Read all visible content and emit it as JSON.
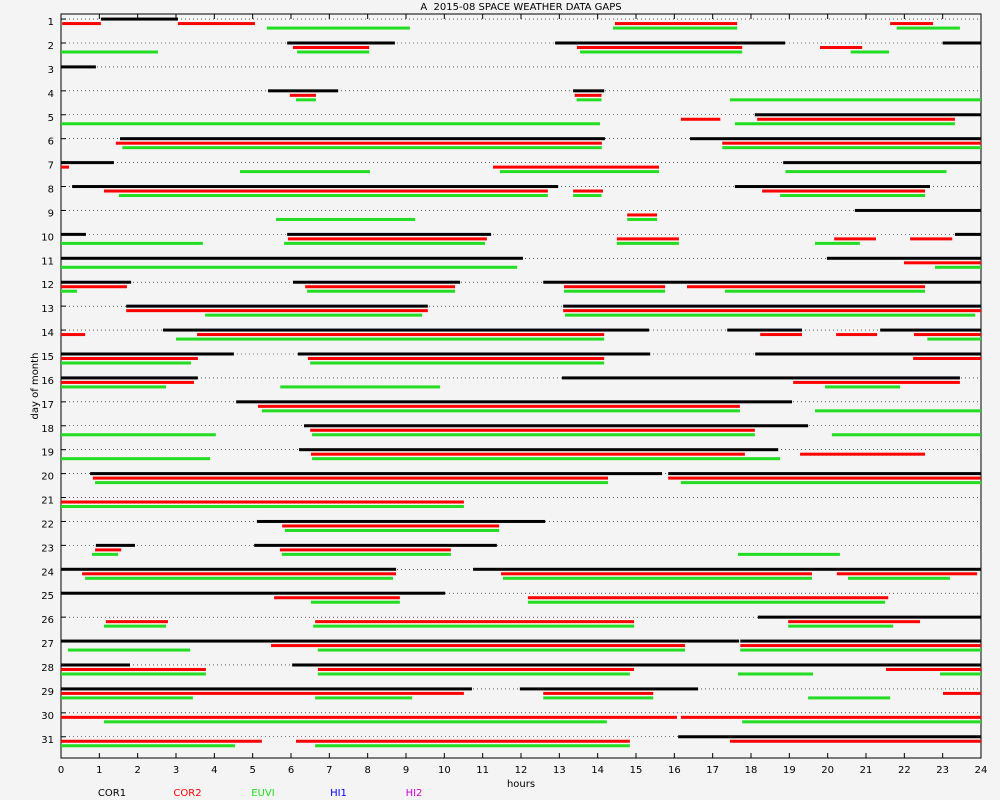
{
  "chart_data": {
    "type": "gaps",
    "title": "A  2015-08 SPACE WEATHER DATA GAPS",
    "x_label": "hours",
    "y_label": "day of month",
    "xlim": [
      0,
      24
    ],
    "xticks": [
      0,
      1,
      2,
      3,
      4,
      5,
      6,
      7,
      8,
      9,
      10,
      11,
      12,
      13,
      14,
      15,
      16,
      17,
      18,
      19,
      20,
      21,
      22,
      23,
      24
    ],
    "ylim": [
      0.6,
      31.7
    ],
    "yticks": [
      1,
      2,
      3,
      4,
      5,
      6,
      7,
      8,
      9,
      10,
      11,
      12,
      13,
      14,
      15,
      16,
      17,
      18,
      19,
      20,
      21,
      22,
      23,
      24,
      25,
      26,
      27,
      28,
      29,
      30,
      31
    ],
    "grid": true,
    "series": [
      {
        "name": "COR1",
        "color": "#000000",
        "gaps": [
          [
            1,
            1.04,
            3.05
          ],
          [
            2,
            5.9,
            8.71
          ],
          [
            2,
            12.89,
            18.89
          ],
          [
            2,
            23,
            24
          ],
          [
            3,
            0,
            0.91
          ],
          [
            4,
            5.4,
            7.23
          ],
          [
            4,
            13.36,
            14.17
          ],
          [
            5,
            18.1,
            24
          ],
          [
            6,
            1.54,
            14.19
          ],
          [
            6,
            16.41,
            24
          ],
          [
            7,
            0,
            1.38
          ],
          [
            7,
            18.84,
            24
          ],
          [
            8,
            0.29,
            12.97
          ],
          [
            8,
            17.58,
            22.67
          ],
          [
            9,
            20.71,
            24
          ],
          [
            10,
            0,
            0.65
          ],
          [
            10,
            5.9,
            11.22
          ],
          [
            10,
            23.32,
            24
          ],
          [
            11,
            0,
            12.05
          ],
          [
            11,
            19.98,
            24
          ],
          [
            12,
            0,
            1.83
          ],
          [
            12,
            6.05,
            10.41
          ],
          [
            12,
            12.58,
            24
          ],
          [
            13,
            1.7,
            9.57
          ],
          [
            13,
            13.1,
            24
          ],
          [
            14,
            2.66,
            15.34
          ],
          [
            14,
            17.38,
            19.33
          ],
          [
            14,
            21.37,
            24
          ],
          [
            15,
            0,
            4.51
          ],
          [
            15,
            6.18,
            15.37
          ],
          [
            15,
            18.11,
            24
          ],
          [
            16,
            0,
            3.57
          ],
          [
            16,
            13.07,
            23.45
          ],
          [
            17,
            4.57,
            19.07
          ],
          [
            18,
            6.34,
            19.49
          ],
          [
            19,
            6.21,
            18.71
          ],
          [
            20,
            0.76,
            15.68
          ],
          [
            20,
            15.84,
            24
          ],
          [
            22,
            5.11,
            12.63
          ],
          [
            23,
            0.91,
            1.93
          ],
          [
            23,
            5.04,
            11.37
          ],
          [
            24,
            0,
            8.74
          ],
          [
            24,
            10.75,
            24
          ],
          [
            25,
            0,
            10.02
          ],
          [
            26,
            18.18,
            24
          ],
          [
            27,
            0,
            17.69
          ],
          [
            27,
            17.72,
            24
          ],
          [
            28,
            0,
            1.8
          ],
          [
            28,
            6.03,
            24
          ],
          [
            29,
            0,
            10.72
          ],
          [
            29,
            11.97,
            16.62
          ],
          [
            31,
            16.1,
            24
          ]
        ]
      },
      {
        "name": "COR2",
        "color": "#ff0000",
        "gaps": [
          [
            1,
            0.03,
            1.04
          ],
          [
            1,
            3.05,
            5.06
          ],
          [
            1,
            14.45,
            17.64
          ],
          [
            1,
            21.63,
            22.75
          ],
          [
            2,
            6.05,
            8.04
          ],
          [
            2,
            13.46,
            17.77
          ],
          [
            2,
            19.8,
            20.9
          ],
          [
            4,
            5.97,
            6.65
          ],
          [
            4,
            13.4,
            14.1
          ],
          [
            5,
            16.17,
            17.2
          ],
          [
            5,
            18.16,
            23.32
          ],
          [
            6,
            1.43,
            14.11
          ],
          [
            6,
            17.25,
            24
          ],
          [
            7,
            0,
            0.21
          ],
          [
            7,
            11.27,
            15.6
          ],
          [
            8,
            1.12,
            12.7
          ],
          [
            8,
            13.36,
            14.14
          ],
          [
            8,
            18.29,
            22.54
          ],
          [
            9,
            14.77,
            15.55
          ],
          [
            10,
            5.92,
            11.11
          ],
          [
            10,
            14.5,
            16.12
          ],
          [
            10,
            20.17,
            21.26
          ],
          [
            10,
            22.15,
            23.25
          ],
          [
            11,
            21.99,
            24
          ],
          [
            12,
            0,
            1.72
          ],
          [
            12,
            6.37,
            10.28
          ],
          [
            12,
            13.12,
            15.76
          ],
          [
            12,
            16.33,
            22.54
          ],
          [
            13,
            1.7,
            9.57
          ],
          [
            13,
            13.1,
            24
          ],
          [
            14,
            0,
            0.63
          ],
          [
            14,
            3.55,
            14.17
          ],
          [
            14,
            18.24,
            19.33
          ],
          [
            14,
            20.22,
            21.29
          ],
          [
            14,
            22.25,
            24
          ],
          [
            15,
            0,
            3.57
          ],
          [
            15,
            6.44,
            14.17
          ],
          [
            15,
            22.23,
            24
          ],
          [
            16,
            0,
            3.47
          ],
          [
            16,
            19.1,
            23.45
          ],
          [
            17,
            5.14,
            17.71
          ],
          [
            18,
            6.5,
            18.1
          ],
          [
            19,
            6.52,
            17.84
          ],
          [
            19,
            19.28,
            22.54
          ],
          [
            20,
            0.83,
            14.27
          ],
          [
            20,
            15.84,
            24
          ],
          [
            21,
            0,
            10.51
          ],
          [
            22,
            5.77,
            11.43
          ],
          [
            23,
            0.89,
            1.57
          ],
          [
            23,
            5.71,
            10.17
          ],
          [
            24,
            0.55,
            8.74
          ],
          [
            24,
            11.48,
            19.59
          ],
          [
            24,
            20.24,
            23.9
          ],
          [
            25,
            5.56,
            8.84
          ],
          [
            25,
            12.18,
            21.58
          ],
          [
            26,
            1.17,
            2.79
          ],
          [
            26,
            6.63,
            14.95
          ],
          [
            26,
            18.97,
            22.41
          ],
          [
            27,
            5.48,
            16.28
          ],
          [
            27,
            17.72,
            24
          ],
          [
            28,
            0,
            3.78
          ],
          [
            28,
            6.7,
            14.95
          ],
          [
            28,
            21.52,
            24
          ],
          [
            29,
            0,
            10.51
          ],
          [
            29,
            12.58,
            15.45
          ],
          [
            29,
            23.01,
            24
          ],
          [
            30,
            0,
            16.07
          ],
          [
            30,
            16.17,
            24
          ],
          [
            31,
            0,
            5.24
          ],
          [
            31,
            6.13,
            14.84
          ],
          [
            31,
            17.45,
            24
          ]
        ]
      },
      {
        "name": "EUVI",
        "color": "#22dd22",
        "gaps": [
          [
            1,
            5.37,
            9.1
          ],
          [
            1,
            14.4,
            17.64
          ],
          [
            1,
            21.8,
            23.45
          ],
          [
            2,
            0,
            2.53
          ],
          [
            2,
            6.16,
            8.04
          ],
          [
            2,
            13.54,
            17.77
          ],
          [
            2,
            20.6,
            21.6
          ],
          [
            4,
            6.13,
            6.65
          ],
          [
            4,
            13.45,
            14.1
          ],
          [
            4,
            17.45,
            24
          ],
          [
            5,
            0,
            14.06
          ],
          [
            5,
            17.58,
            23.32
          ],
          [
            6,
            1.6,
            14.11
          ],
          [
            6,
            17.25,
            24
          ],
          [
            7,
            4.67,
            8.06
          ],
          [
            7,
            11.45,
            15.6
          ],
          [
            7,
            18.9,
            23.1
          ],
          [
            8,
            1.51,
            12.7
          ],
          [
            8,
            13.36,
            14.1
          ],
          [
            8,
            18.76,
            22.54
          ],
          [
            9,
            5.61,
            9.24
          ],
          [
            9,
            14.77,
            15.55
          ],
          [
            10,
            0,
            3.7
          ],
          [
            10,
            5.82,
            11.06
          ],
          [
            10,
            14.5,
            16.12
          ],
          [
            10,
            19.67,
            20.84
          ],
          [
            11,
            0,
            11.9
          ],
          [
            11,
            22.8,
            24
          ],
          [
            12,
            0,
            0.42
          ],
          [
            12,
            6.42,
            10.28
          ],
          [
            12,
            13.12,
            15.76
          ],
          [
            12,
            17.32,
            22.54
          ],
          [
            13,
            3.76,
            9.42
          ],
          [
            13,
            13.15,
            23.85
          ],
          [
            14,
            3,
            14.17
          ],
          [
            14,
            22.6,
            24
          ],
          [
            15,
            0,
            3.39
          ],
          [
            15,
            6.5,
            14.17
          ],
          [
            16,
            0,
            2.74
          ],
          [
            16,
            5.72,
            9.89
          ],
          [
            16,
            19.93,
            21.89
          ],
          [
            17,
            5.24,
            17.71
          ],
          [
            17,
            19.67,
            24
          ],
          [
            18,
            0,
            4.04
          ],
          [
            18,
            6.55,
            18.1
          ],
          [
            18,
            20.11,
            24
          ],
          [
            19,
            0,
            3.89
          ],
          [
            19,
            6.55,
            18.76
          ],
          [
            20,
            0.89,
            14.27
          ],
          [
            20,
            16.17,
            24
          ],
          [
            21,
            0,
            10.51
          ],
          [
            22,
            5.84,
            11.43
          ],
          [
            23,
            0.81,
            1.49
          ],
          [
            23,
            5.76,
            10.17
          ],
          [
            23,
            17.66,
            20.32
          ],
          [
            24,
            0.63,
            8.66
          ],
          [
            24,
            11.53,
            19.59
          ],
          [
            24,
            20.53,
            23.19
          ],
          [
            25,
            6.52,
            8.84
          ],
          [
            25,
            12.18,
            21.5
          ],
          [
            26,
            1.12,
            2.74
          ],
          [
            26,
            6.58,
            14.95
          ],
          [
            26,
            18.97,
            21.71
          ],
          [
            27,
            0.18,
            3.37
          ],
          [
            27,
            6.7,
            16.28
          ],
          [
            27,
            17.72,
            24
          ],
          [
            28,
            0,
            3.78
          ],
          [
            28,
            6.7,
            14.84
          ],
          [
            28,
            17.66,
            19.62
          ],
          [
            28,
            22.93,
            24
          ],
          [
            29,
            0,
            3.44
          ],
          [
            29,
            6.63,
            9.16
          ],
          [
            29,
            12.58,
            15.45
          ],
          [
            29,
            19.49,
            21.63
          ],
          [
            30,
            1.12,
            14.24
          ],
          [
            30,
            17.77,
            24
          ],
          [
            31,
            0,
            4.54
          ],
          [
            31,
            6.63,
            14.84
          ]
        ]
      },
      {
        "name": "HI1",
        "color": "#0000ff",
        "gaps": []
      },
      {
        "name": "HI2",
        "color": "#cc00cc",
        "gaps": []
      }
    ]
  }
}
